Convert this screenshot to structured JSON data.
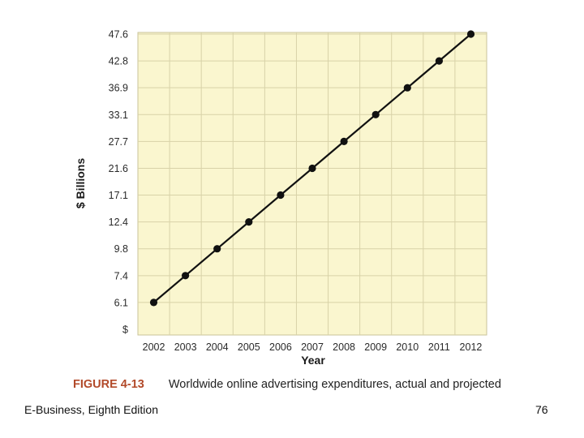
{
  "chart_data": {
    "type": "line",
    "title": "",
    "xlabel": "Year",
    "ylabel": "$ Billions",
    "categories": [
      "2002",
      "2003",
      "2004",
      "2005",
      "2006",
      "2007",
      "2008",
      "2009",
      "2010",
      "2011",
      "2012"
    ],
    "y_tick_labels": [
      "$",
      "6.1",
      "7.4",
      "9.8",
      "12.4",
      "17.1",
      "21.6",
      "27.7",
      "33.1",
      "36.9",
      "42.8",
      "47.6"
    ],
    "series": [
      {
        "name": "Worldwide online advertising expenditures",
        "values": [
          6.1,
          7.4,
          9.8,
          12.4,
          17.1,
          21.6,
          27.7,
          33.1,
          36.9,
          42.8,
          47.6
        ]
      }
    ],
    "grid": true,
    "colors": {
      "plot_background": "#faf6cf",
      "line": "#111111",
      "grid": "#d8d2a8"
    }
  },
  "caption": {
    "figure_number": "FIGURE 4-13",
    "text": "Worldwide online advertising expenditures, actual and projected"
  },
  "footer": {
    "book_title": "E-Business, Eighth Edition",
    "page_number": "76"
  }
}
